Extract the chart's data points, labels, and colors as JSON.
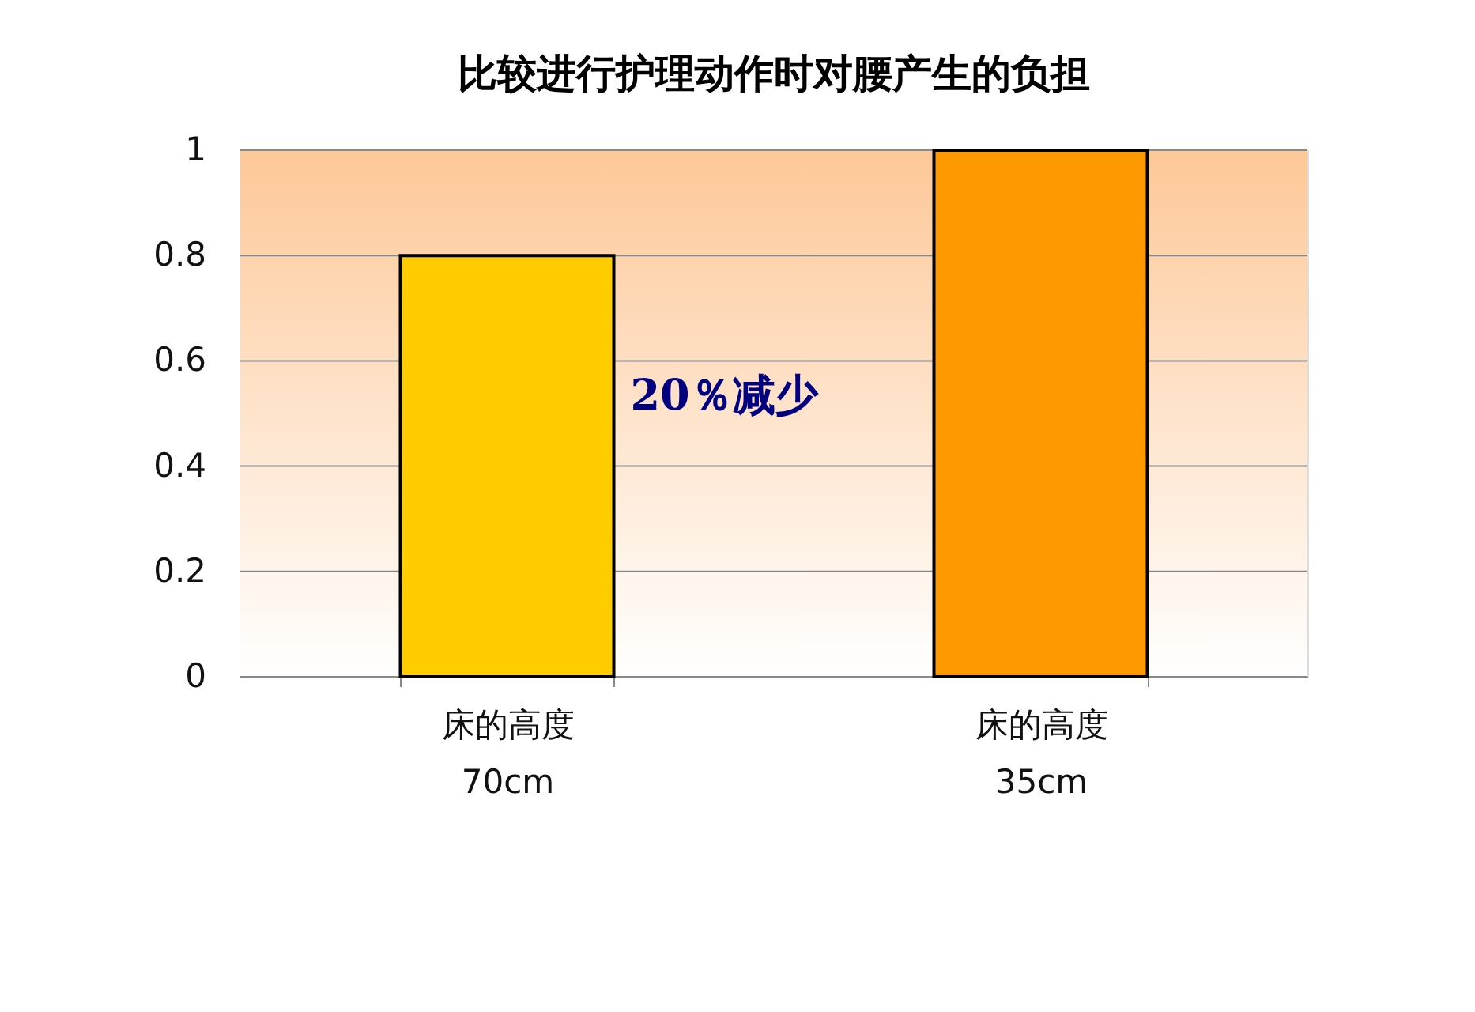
{
  "chart_data": {
    "type": "bar",
    "title": "比较进行护理动作时对腰产生的负担",
    "categories": [
      "床的高度\n70cm",
      "床的高度\n35cm"
    ],
    "values": [
      0.8,
      1.0
    ],
    "colors": [
      "#ffcc00",
      "#ff9900"
    ],
    "ylim": [
      0,
      1
    ],
    "yticks": [
      0,
      0.2,
      0.4,
      0.6,
      0.8,
      1
    ],
    "grid": "y",
    "annotations": [
      "20％减少"
    ]
  }
}
